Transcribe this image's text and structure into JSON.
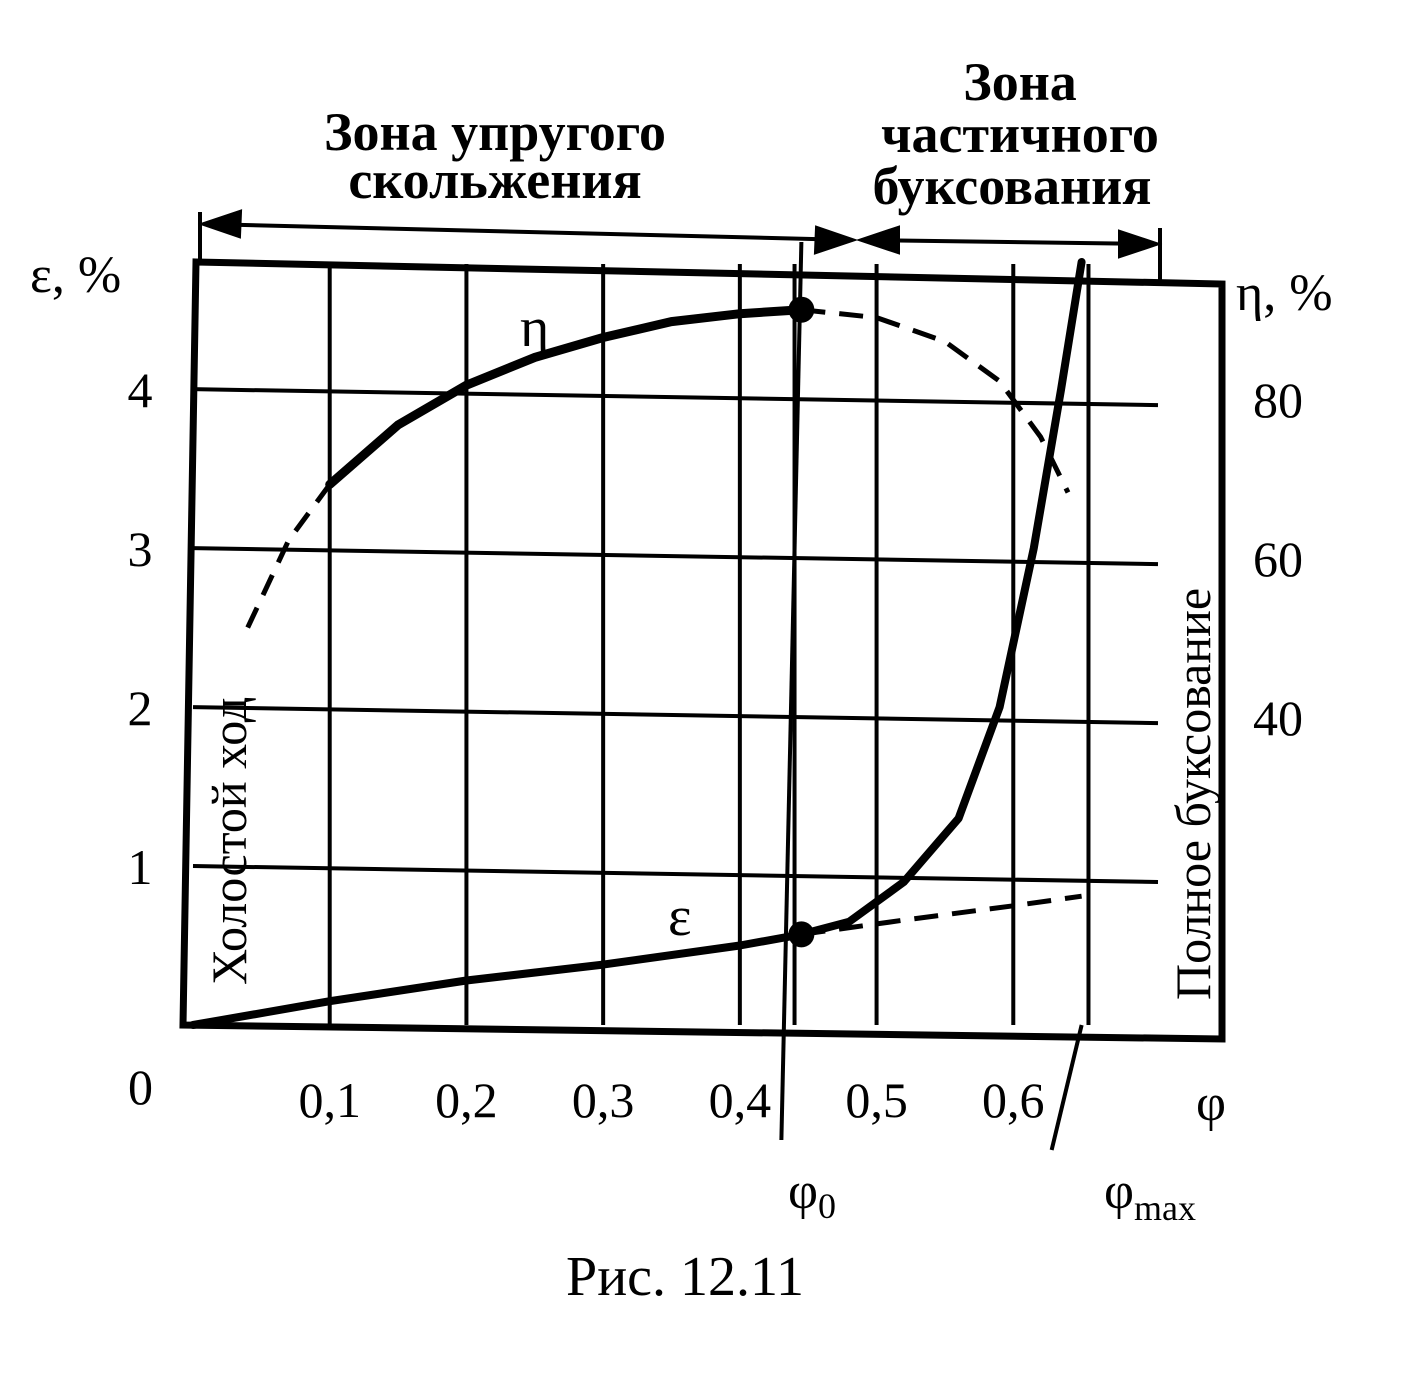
{
  "caption": "Рис. 12.11",
  "zones": {
    "elastic_line1": "Зона упругого",
    "elastic_line2": "скольжения",
    "partial_line1": "Зона",
    "partial_line2": "частичного",
    "partial_line3": "буксования"
  },
  "side_labels": {
    "idle": "Холостой ход",
    "full_slip": "Полное буксование"
  },
  "axes": {
    "left_label": "ε, %",
    "right_label": "η, %",
    "x_label": "φ",
    "origin": "0",
    "phi0_label": "φ",
    "phi0_sub": "0",
    "phimax_label": "φ",
    "phimax_sub": "max"
  },
  "curve_labels": {
    "eta": "η",
    "eps": "ε"
  },
  "chart_data": {
    "type": "line",
    "x_ticks": [
      {
        "value": 0.1,
        "label": "0,1"
      },
      {
        "value": 0.2,
        "label": "0,2"
      },
      {
        "value": 0.3,
        "label": "0,3"
      },
      {
        "value": 0.4,
        "label": "0,4"
      },
      {
        "value": 0.5,
        "label": "0,5"
      },
      {
        "value": 0.6,
        "label": "0,6"
      }
    ],
    "y_left_ticks": [
      {
        "value": 1,
        "label": "1"
      },
      {
        "value": 2,
        "label": "2"
      },
      {
        "value": 3,
        "label": "3"
      },
      {
        "value": 4,
        "label": "4"
      }
    ],
    "y_right_ticks": [
      {
        "value": 40,
        "label": "40"
      },
      {
        "value": 60,
        "label": "60"
      },
      {
        "value": 80,
        "label": "80"
      }
    ],
    "xlim": [
      0,
      0.7
    ],
    "ylim_left": [
      0,
      4.8
    ],
    "ylim_right": [
      0,
      96
    ],
    "grid": true,
    "phi0": 0.445,
    "phimax": 0.65,
    "series": [
      {
        "axis": "right",
        "dashed_points": [
          [
            0.04,
            50
          ],
          [
            0.07,
            61
          ],
          [
            0.1,
            68
          ]
        ],
        "solid_points": [
          [
            0.1,
            68
          ],
          [
            0.15,
            75.5
          ],
          [
            0.2,
            80.5
          ],
          [
            0.25,
            84
          ],
          [
            0.3,
            86.5
          ],
          [
            0.35,
            88.5
          ],
          [
            0.4,
            89.5
          ],
          [
            0.445,
            90
          ]
        ],
        "extrapolated_points": [
          [
            0.445,
            90
          ],
          [
            0.5,
            89
          ],
          [
            0.55,
            86
          ],
          [
            0.59,
            81
          ],
          [
            0.62,
            74
          ],
          [
            0.64,
            67
          ]
        ]
      },
      {
        "axis": "left",
        "solid_points": [
          [
            0.0,
            0.0
          ],
          [
            0.1,
            0.15
          ],
          [
            0.2,
            0.28
          ],
          [
            0.3,
            0.38
          ],
          [
            0.4,
            0.5
          ],
          [
            0.445,
            0.57
          ],
          [
            0.48,
            0.65
          ],
          [
            0.52,
            0.9
          ],
          [
            0.56,
            1.3
          ],
          [
            0.59,
            2.0
          ],
          [
            0.615,
            3.0
          ],
          [
            0.635,
            4.0
          ],
          [
            0.65,
            4.8
          ]
        ],
        "extrapolated_points": [
          [
            0.445,
            0.57
          ],
          [
            0.52,
            0.66
          ],
          [
            0.6,
            0.75
          ],
          [
            0.65,
            0.81
          ]
        ]
      }
    ]
  }
}
